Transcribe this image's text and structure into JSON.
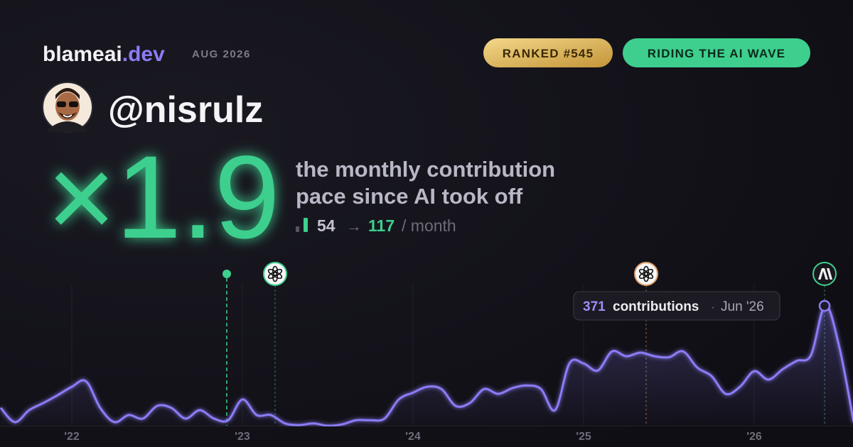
{
  "header": {
    "brand": "blameai",
    "brand_tld": ".dev",
    "date": "AUG 2026",
    "badges": [
      "RANKED #545",
      "RIDING THE AI WAVE"
    ]
  },
  "profile": {
    "handle": "@nisrulz"
  },
  "headline": {
    "multiplier": "×1.9",
    "caption": [
      "the monthly contribution",
      "pace since AI took off"
    ],
    "before": 54,
    "arrow": "→",
    "after": 117,
    "unit": "/ month"
  },
  "chart_data": {
    "type": "line",
    "categories": [
      null,
      null,
      null,
      null,
      null,
      "'22",
      null,
      null,
      null,
      null,
      null,
      null,
      null,
      null,
      null,
      null,
      null,
      "'23",
      null,
      null,
      null,
      null,
      null,
      null,
      null,
      null,
      null,
      null,
      null,
      "'24",
      null,
      null,
      null,
      null,
      null,
      null,
      null,
      null,
      null,
      null,
      null,
      "'25",
      null,
      null,
      null,
      null,
      null,
      null,
      null,
      null,
      null,
      null,
      null,
      "'26",
      null,
      null,
      null,
      null,
      null,
      null,
      null
    ],
    "series": [
      {
        "color": "#8b7cf6",
        "values": [
          55,
          11,
          48,
          70,
          94,
          120,
          137,
          55,
          11,
          33,
          22,
          61,
          55,
          22,
          48,
          22,
          17,
          81,
          33,
          33,
          7,
          2,
          7,
          0,
          4,
          17,
          17,
          22,
          81,
          102,
          120,
          113,
          61,
          70,
          113,
          98,
          116,
          124,
          113,
          48,
          192,
          192,
          170,
          229,
          214,
          225,
          214,
          211,
          229,
          179,
          153,
          98,
          120,
          168,
          142,
          174,
          200,
          218,
          371,
          240,
          10
        ]
      }
    ],
    "ylim": [
      0,
      400
    ],
    "tooltip": {
      "label": "contributions",
      "separator": "·",
      "date": "Jun '26"
    }
  }
}
